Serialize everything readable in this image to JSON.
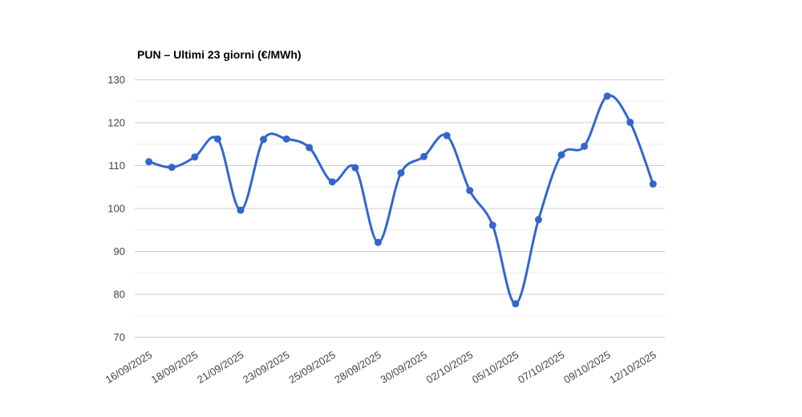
{
  "page": {
    "background": "#ffffff"
  },
  "chart_data": {
    "type": "line",
    "title": "PUN – Ultimi 23 giorni (€/MWh)",
    "series": [
      {
        "name": "PUN",
        "values": [
          110.9,
          109.6,
          112.0,
          116.2,
          99.6,
          116.1,
          116.2,
          114.2,
          106.2,
          109.5,
          92.1,
          108.3,
          112.1,
          117.0,
          104.2,
          96.1,
          77.8,
          97.4,
          112.5,
          114.5,
          126.2,
          120.1,
          105.7
        ]
      }
    ],
    "num_points": 23,
    "x_tick_labels": [
      "16/09/2025",
      "18/09/2025",
      "21/09/2025",
      "23/09/2025",
      "25/09/2025",
      "28/09/2025",
      "30/09/2025",
      "02/10/2025",
      "05/10/2025",
      "07/10/2025",
      "09/10/2025",
      "12/10/2025"
    ],
    "x_label_every_nth_point": 2,
    "ylim": [
      70,
      130
    ],
    "y_major_ticks": [
      70,
      80,
      90,
      100,
      110,
      120,
      130
    ],
    "y_minor_ticks": [
      75,
      85,
      95,
      105,
      115,
      125
    ],
    "grid": "horizontal major + minor, no vertical gridlines",
    "legend": "none",
    "curve": "smooth",
    "colors": {
      "line": "#3366cc",
      "point": "#3366cc",
      "grid_major": "#cccccc",
      "grid_minor": "#ebebeb",
      "axis_text": "#444444",
      "title_text": "#000000",
      "background": "#ffffff"
    }
  }
}
